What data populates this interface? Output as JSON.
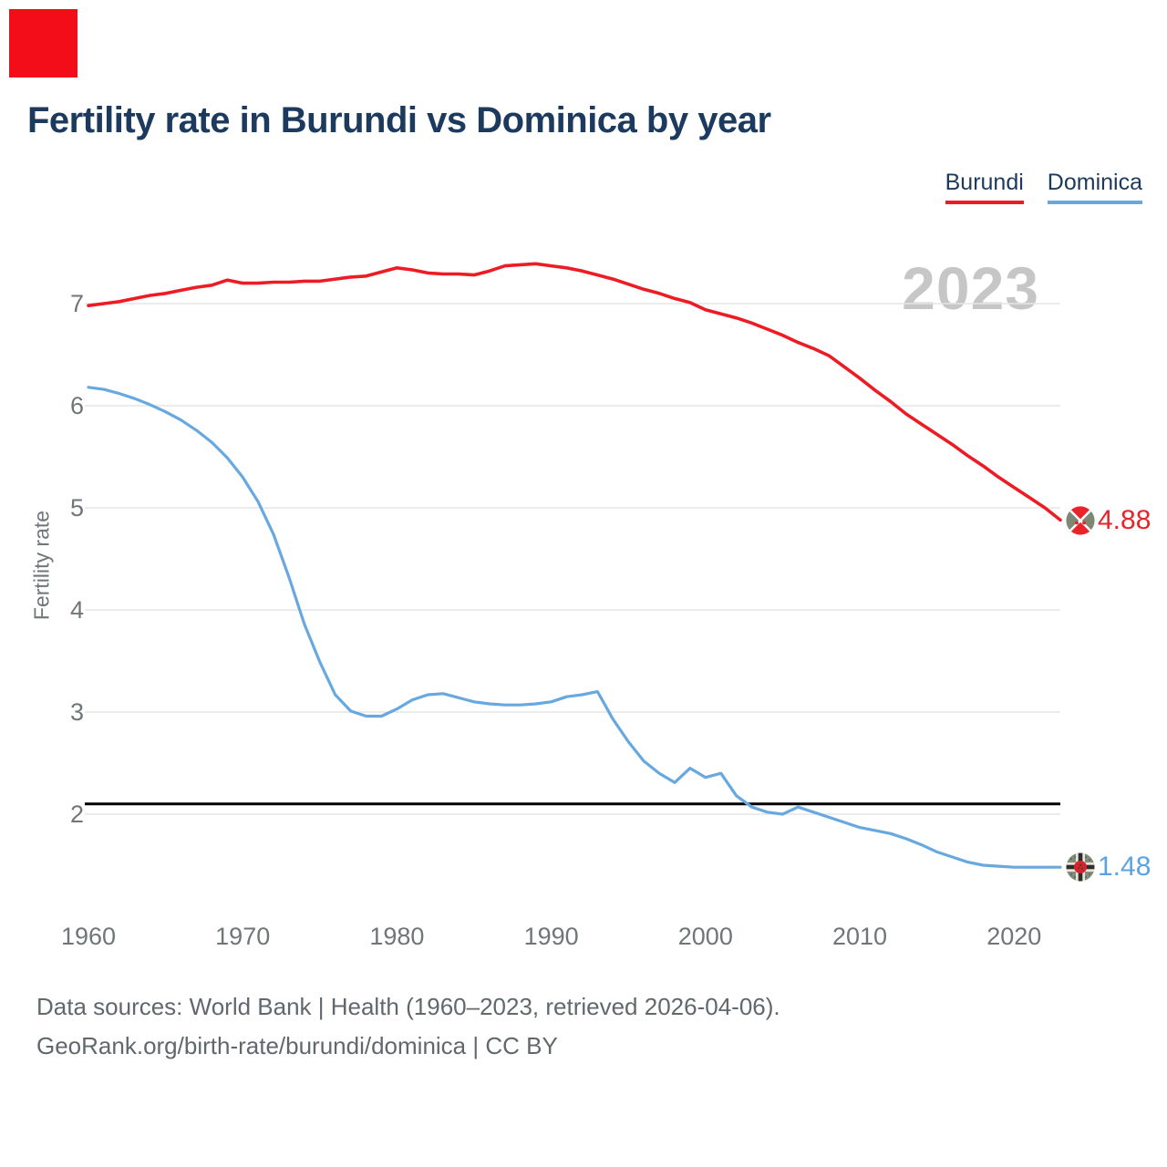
{
  "title": "Fertility rate in Burundi vs Dominica by year",
  "watermark": "2023",
  "legend": [
    {
      "label": "Burundi",
      "color": "#ed1c24"
    },
    {
      "label": "Dominica",
      "color": "#68a8e1"
    }
  ],
  "y_axis": {
    "label": "Fertility rate",
    "ticks": [
      7,
      6,
      5,
      4,
      3,
      2
    ]
  },
  "x_axis": {
    "ticks": [
      1960,
      1970,
      1980,
      1990,
      2000,
      2010,
      2020
    ]
  },
  "reference_line": {
    "value": 2.1,
    "color": "#000000"
  },
  "end_labels": [
    {
      "text": "4.88",
      "color": "#e8232a"
    },
    {
      "text": "1.48",
      "color": "#5ba3e0"
    }
  ],
  "footer": {
    "line1": "Data sources: World Bank | Health (1960–2023, retrieved 2026-04-06).",
    "line2": "GeoRank.org/birth-rate/burundi/dominica | CC BY"
  },
  "chart_data": {
    "type": "line",
    "title": "Fertility rate in Burundi vs Dominica by year",
    "xlabel": "year",
    "ylabel": "Fertility rate",
    "xlim": [
      1960,
      2023
    ],
    "ylim": [
      1.3,
      7.6
    ],
    "grid": "horizontal",
    "legend_position": "top-right",
    "x": [
      1960,
      1961,
      1962,
      1963,
      1964,
      1965,
      1966,
      1967,
      1968,
      1969,
      1970,
      1971,
      1972,
      1973,
      1974,
      1975,
      1976,
      1977,
      1978,
      1979,
      1980,
      1981,
      1982,
      1983,
      1984,
      1985,
      1986,
      1987,
      1988,
      1989,
      1990,
      1991,
      1992,
      1993,
      1994,
      1995,
      1996,
      1997,
      1998,
      1999,
      2000,
      2001,
      2002,
      2003,
      2004,
      2005,
      2006,
      2007,
      2008,
      2009,
      2010,
      2011,
      2012,
      2013,
      2014,
      2015,
      2016,
      2017,
      2018,
      2019,
      2020,
      2021,
      2022,
      2023
    ],
    "series": [
      {
        "name": "Burundi",
        "color": "#ed1c24",
        "values": [
          6.98,
          7.0,
          7.02,
          7.05,
          7.08,
          7.1,
          7.13,
          7.16,
          7.18,
          7.23,
          7.2,
          7.2,
          7.21,
          7.21,
          7.22,
          7.22,
          7.24,
          7.26,
          7.27,
          7.31,
          7.35,
          7.33,
          7.3,
          7.29,
          7.29,
          7.28,
          7.32,
          7.37,
          7.38,
          7.39,
          7.37,
          7.35,
          7.32,
          7.28,
          7.24,
          7.19,
          7.14,
          7.1,
          7.05,
          7.01,
          6.94,
          6.9,
          6.86,
          6.81,
          6.75,
          6.69,
          6.62,
          6.56,
          6.49,
          6.38,
          6.27,
          6.15,
          6.04,
          5.92,
          5.82,
          5.72,
          5.62,
          5.51,
          5.41,
          5.3,
          5.2,
          5.1,
          5.0,
          4.88
        ]
      },
      {
        "name": "Dominica",
        "color": "#68a8e1",
        "values": [
          6.18,
          6.16,
          6.12,
          6.07,
          6.01,
          5.94,
          5.86,
          5.76,
          5.64,
          5.49,
          5.3,
          5.06,
          4.74,
          4.32,
          3.86,
          3.49,
          3.17,
          3.01,
          2.96,
          2.96,
          3.03,
          3.12,
          3.17,
          3.18,
          3.14,
          3.1,
          3.08,
          3.07,
          3.07,
          3.08,
          3.1,
          3.15,
          3.17,
          3.2,
          2.93,
          2.71,
          2.52,
          2.4,
          2.31,
          2.45,
          2.36,
          2.4,
          2.18,
          2.07,
          2.02,
          2.0,
          2.07,
          2.02,
          1.97,
          1.92,
          1.87,
          1.84,
          1.81,
          1.76,
          1.7,
          1.63,
          1.58,
          1.53,
          1.5,
          1.49,
          1.48,
          1.48,
          1.48,
          1.48
        ]
      }
    ]
  }
}
